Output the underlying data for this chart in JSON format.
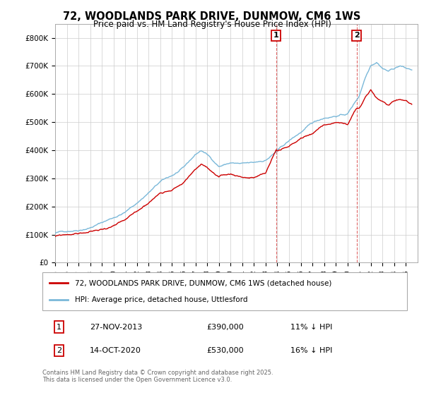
{
  "title": "72, WOODLANDS PARK DRIVE, DUNMOW, CM6 1WS",
  "subtitle": "Price paid vs. HM Land Registry's House Price Index (HPI)",
  "legend_line1": "72, WOODLANDS PARK DRIVE, DUNMOW, CM6 1WS (detached house)",
  "legend_line2": "HPI: Average price, detached house, Uttlesford",
  "annotation1_label": "1",
  "annotation1_date": "27-NOV-2013",
  "annotation1_price": "£390,000",
  "annotation1_hpi": "11% ↓ HPI",
  "annotation1_year": 2013.9,
  "annotation2_label": "2",
  "annotation2_date": "14-OCT-2020",
  "annotation2_price": "£530,000",
  "annotation2_hpi": "16% ↓ HPI",
  "annotation2_year": 2020.78,
  "ylim": [
    0,
    850000
  ],
  "yticks": [
    0,
    100000,
    200000,
    300000,
    400000,
    500000,
    600000,
    700000,
    800000
  ],
  "ytick_labels": [
    "£0",
    "£100K",
    "£200K",
    "£300K",
    "£400K",
    "£500K",
    "£600K",
    "£700K",
    "£800K"
  ],
  "xlim_start": 1995,
  "xlim_end": 2026,
  "hpi_color": "#7ab8d9",
  "price_color": "#cc0000",
  "grid_color": "#cccccc",
  "background_color": "#ffffff",
  "annotation_box_color": "#cc0000",
  "footer_text": "Contains HM Land Registry data © Crown copyright and database right 2025.\nThis data is licensed under the Open Government Licence v3.0.",
  "hpi_ctrl": [
    [
      1995.0,
      105000
    ],
    [
      1996.0,
      112000
    ],
    [
      1997.0,
      120000
    ],
    [
      1998.0,
      132000
    ],
    [
      1999.0,
      150000
    ],
    [
      2000.0,
      168000
    ],
    [
      2001.0,
      188000
    ],
    [
      2002.0,
      220000
    ],
    [
      2003.0,
      258000
    ],
    [
      2004.0,
      295000
    ],
    [
      2005.0,
      315000
    ],
    [
      2006.0,
      340000
    ],
    [
      2007.0,
      385000
    ],
    [
      2007.5,
      400000
    ],
    [
      2008.0,
      385000
    ],
    [
      2009.0,
      345000
    ],
    [
      2010.0,
      358000
    ],
    [
      2011.0,
      352000
    ],
    [
      2012.0,
      352000
    ],
    [
      2013.0,
      362000
    ],
    [
      2014.0,
      395000
    ],
    [
      2015.0,
      428000
    ],
    [
      2016.0,
      458000
    ],
    [
      2017.0,
      488000
    ],
    [
      2018.0,
      508000
    ],
    [
      2019.0,
      518000
    ],
    [
      2020.0,
      525000
    ],
    [
      2021.0,
      590000
    ],
    [
      2021.5,
      655000
    ],
    [
      2022.0,
      705000
    ],
    [
      2022.5,
      718000
    ],
    [
      2023.0,
      698000
    ],
    [
      2023.5,
      688000
    ],
    [
      2024.0,
      698000
    ],
    [
      2024.5,
      708000
    ],
    [
      2025.0,
      698000
    ],
    [
      2025.5,
      692000
    ]
  ],
  "price_ctrl": [
    [
      1995.0,
      93000
    ],
    [
      1996.0,
      98000
    ],
    [
      1997.0,
      103000
    ],
    [
      1998.0,
      108000
    ],
    [
      1999.0,
      116000
    ],
    [
      2000.0,
      128000
    ],
    [
      2001.0,
      142000
    ],
    [
      2002.0,
      168000
    ],
    [
      2003.0,
      202000
    ],
    [
      2004.0,
      238000
    ],
    [
      2005.0,
      256000
    ],
    [
      2006.0,
      282000
    ],
    [
      2007.0,
      326000
    ],
    [
      2007.5,
      346000
    ],
    [
      2008.0,
      335000
    ],
    [
      2009.0,
      295000
    ],
    [
      2010.0,
      302000
    ],
    [
      2011.0,
      295000
    ],
    [
      2012.0,
      292000
    ],
    [
      2013.0,
      305000
    ],
    [
      2013.9,
      390000
    ],
    [
      2014.0,
      386000
    ],
    [
      2015.0,
      398000
    ],
    [
      2016.0,
      426000
    ],
    [
      2017.0,
      446000
    ],
    [
      2018.0,
      476000
    ],
    [
      2019.0,
      486000
    ],
    [
      2020.0,
      476000
    ],
    [
      2020.78,
      530000
    ],
    [
      2021.0,
      528000
    ],
    [
      2021.5,
      565000
    ],
    [
      2022.0,
      595000
    ],
    [
      2022.5,
      565000
    ],
    [
      2023.0,
      550000
    ],
    [
      2023.5,
      540000
    ],
    [
      2024.0,
      555000
    ],
    [
      2024.5,
      562000
    ],
    [
      2025.0,
      558000
    ],
    [
      2025.5,
      548000
    ]
  ]
}
